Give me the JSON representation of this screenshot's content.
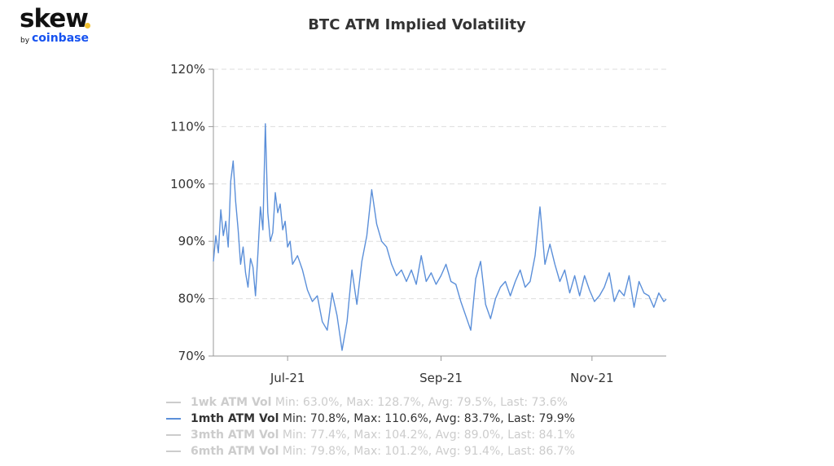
{
  "logo": {
    "word": "skew",
    "by": "by",
    "brand": "coinbase",
    "dot_color": "#f2c230",
    "brand_color": "#1652f0"
  },
  "chart_data": {
    "type": "line",
    "title": "BTC ATM Implied Volatility",
    "xlabel": "",
    "ylabel": "",
    "ylim": [
      70,
      120
    ],
    "yticks": [
      70,
      80,
      90,
      100,
      110,
      120
    ],
    "ytick_labels": [
      "70%",
      "80%",
      "90%",
      "100%",
      "110%",
      "120%"
    ],
    "xlim": [
      "2021-06-01",
      "2021-12-01"
    ],
    "xticks": [
      "2021-07-01",
      "2021-09-01",
      "2021-11-01"
    ],
    "xtick_labels": [
      "Jul-21",
      "Sep-21",
      "Nov-21"
    ],
    "grid": "horizontal dashed",
    "legend_position": "bottom",
    "line_color": "#5b8fd9",
    "series": [
      {
        "name": "1wk ATM Vol",
        "stats": "Min: 63.0%, Max: 128.7%, Avg: 79.5%, Last: 73.6%",
        "visible": false
      },
      {
        "name": "1mth ATM Vol",
        "stats": "Min: 70.8%, Max: 110.6%, Avg: 83.7%, Last: 79.9%",
        "visible": true,
        "x": [
          "2021-06-01",
          "2021-06-02",
          "2021-06-03",
          "2021-06-04",
          "2021-06-05",
          "2021-06-06",
          "2021-06-07",
          "2021-06-08",
          "2021-06-09",
          "2021-06-10",
          "2021-06-11",
          "2021-06-12",
          "2021-06-13",
          "2021-06-14",
          "2021-06-15",
          "2021-06-16",
          "2021-06-17",
          "2021-06-18",
          "2021-06-19",
          "2021-06-20",
          "2021-06-21",
          "2021-06-22",
          "2021-06-23",
          "2021-06-24",
          "2021-06-25",
          "2021-06-26",
          "2021-06-27",
          "2021-06-28",
          "2021-06-29",
          "2021-06-30",
          "2021-07-01",
          "2021-07-02",
          "2021-07-03",
          "2021-07-05",
          "2021-07-07",
          "2021-07-09",
          "2021-07-11",
          "2021-07-13",
          "2021-07-15",
          "2021-07-17",
          "2021-07-19",
          "2021-07-21",
          "2021-07-23",
          "2021-07-25",
          "2021-07-27",
          "2021-07-29",
          "2021-07-31",
          "2021-08-02",
          "2021-08-04",
          "2021-08-06",
          "2021-08-08",
          "2021-08-10",
          "2021-08-12",
          "2021-08-14",
          "2021-08-16",
          "2021-08-18",
          "2021-08-20",
          "2021-08-22",
          "2021-08-24",
          "2021-08-26",
          "2021-08-28",
          "2021-08-30",
          "2021-09-01",
          "2021-09-03",
          "2021-09-05",
          "2021-09-07",
          "2021-09-09",
          "2021-09-11",
          "2021-09-13",
          "2021-09-15",
          "2021-09-17",
          "2021-09-19",
          "2021-09-21",
          "2021-09-23",
          "2021-09-25",
          "2021-09-27",
          "2021-09-29",
          "2021-10-01",
          "2021-10-03",
          "2021-10-05",
          "2021-10-07",
          "2021-10-09",
          "2021-10-11",
          "2021-10-13",
          "2021-10-15",
          "2021-10-17",
          "2021-10-19",
          "2021-10-21",
          "2021-10-23",
          "2021-10-25",
          "2021-10-27",
          "2021-10-29",
          "2021-10-31",
          "2021-11-02",
          "2021-11-04",
          "2021-11-06",
          "2021-11-08",
          "2021-11-10",
          "2021-11-12",
          "2021-11-14",
          "2021-11-16",
          "2021-11-18",
          "2021-11-20",
          "2021-11-22",
          "2021-11-24",
          "2021-11-26",
          "2021-11-28",
          "2021-11-30",
          "2021-12-01"
        ],
        "values": [
          86.5,
          91.0,
          88.0,
          95.5,
          91.0,
          93.5,
          89.0,
          100.5,
          104.0,
          97.0,
          92.0,
          86.0,
          89.0,
          84.5,
          82.0,
          87.0,
          85.5,
          80.5,
          88.0,
          96.0,
          92.0,
          110.5,
          95.0,
          90.0,
          91.5,
          98.5,
          95.0,
          96.5,
          92.0,
          93.5,
          89.0,
          90.0,
          86.0,
          87.5,
          85.0,
          81.5,
          79.5,
          80.5,
          76.0,
          74.5,
          81.0,
          77.0,
          71.0,
          76.0,
          85.0,
          79.0,
          86.5,
          91.0,
          99.0,
          93.0,
          90.0,
          89.0,
          86.0,
          84.0,
          85.0,
          83.0,
          85.0,
          82.5,
          87.5,
          83.0,
          84.5,
          82.5,
          84.0,
          86.0,
          83.0,
          82.5,
          79.5,
          77.0,
          74.5,
          83.5,
          86.5,
          79.0,
          76.5,
          80.0,
          82.0,
          83.0,
          80.5,
          83.0,
          85.0,
          82.0,
          83.0,
          87.5,
          96.0,
          86.0,
          89.5,
          86.0,
          83.0,
          85.0,
          81.0,
          84.0,
          80.5,
          84.0,
          81.5,
          79.5,
          80.5,
          82.0,
          84.5,
          79.5,
          81.5,
          80.5,
          84.0,
          78.5,
          83.0,
          81.0,
          80.5,
          78.5,
          81.0,
          79.5,
          79.9
        ]
      },
      {
        "name": "3mth ATM Vol",
        "stats": "Min: 77.4%, Max: 104.2%, Avg: 89.0%, Last: 84.1%",
        "visible": false
      },
      {
        "name": "6mth ATM Vol",
        "stats": "Min: 79.8%, Max: 101.2%, Avg: 91.4%, Last: 86.7%",
        "visible": false
      }
    ]
  }
}
